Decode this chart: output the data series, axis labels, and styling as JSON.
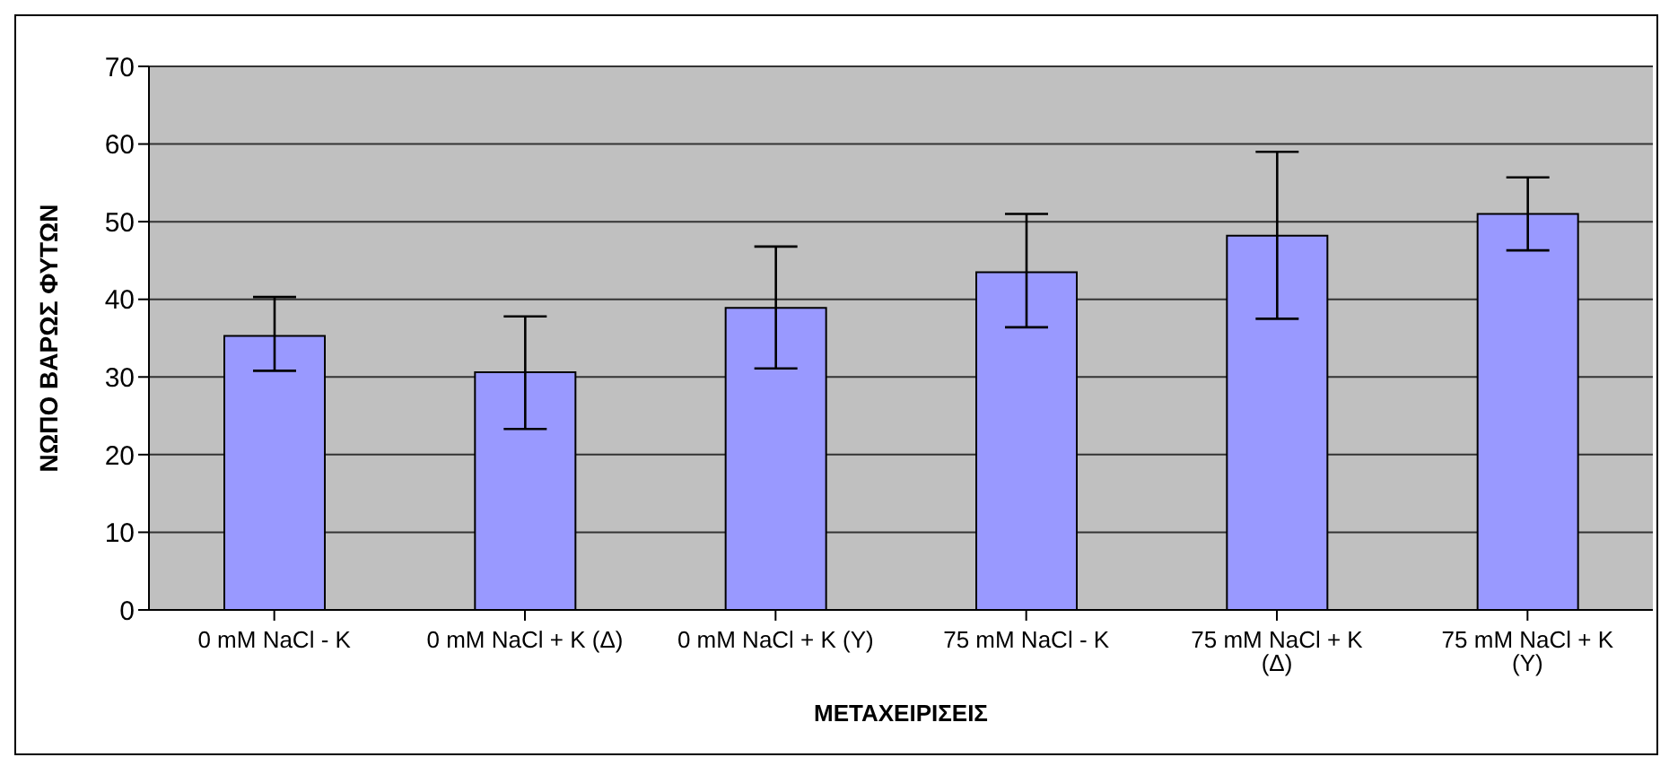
{
  "chart_data": {
    "type": "bar",
    "xlabel": "ΜΕΤΑΧΕΙΡΙΣΕΙΣ",
    "ylabel": "ΝΩΠΟ ΒΑΡΩΣ ΦΥΤΩΝ",
    "categories": [
      "0 mM NaCl - K",
      "0 mM NaCl + K (Δ)",
      "0 mM NaCl + K (Υ)",
      "75 mM NaCl - K",
      "75 mM NaCl + K (Δ)",
      "75 mM NaCl + K (Υ)"
    ],
    "values": [
      35.3,
      30.6,
      38.9,
      43.5,
      48.2,
      51.0
    ],
    "errors": [
      [
        30.8,
        40.3
      ],
      [
        23.3,
        37.8
      ],
      [
        31.1,
        46.8
      ],
      [
        36.4,
        51.0
      ],
      [
        37.5,
        59.0
      ],
      [
        46.3,
        55.7
      ]
    ],
    "color": "#9999ff",
    "ylim": [
      0,
      70
    ],
    "yticks": [
      0,
      10,
      20,
      30,
      40,
      50,
      60,
      70
    ],
    "grid": "y",
    "legend": false
  }
}
